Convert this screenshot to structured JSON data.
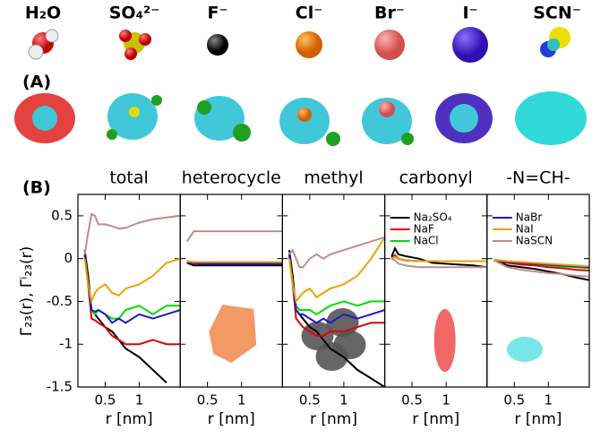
{
  "ions": [
    "H₂O",
    "SO₄²⁻",
    "F⁻",
    "Cl⁻",
    "Br⁻",
    "I⁻",
    "SCN⁻"
  ],
  "panel_labels": [
    "(A)",
    "(B)"
  ],
  "chart_data": [
    {
      "type": "line",
      "title": "total",
      "x_label": "r [nm]",
      "y_label": "Γ₂₃(r), Γⁱ₂₃(r)",
      "x": [
        0.2,
        0.25,
        0.3,
        0.35,
        0.4,
        0.5,
        0.6,
        0.7,
        0.8,
        1.0,
        1.2,
        1.4,
        1.6
      ],
      "xlim": [
        0.1,
        1.6
      ],
      "xticks": [
        0.5,
        1
      ],
      "ylim": [
        -1.5,
        0.75
      ],
      "yticks": [
        0.5,
        0,
        -0.5,
        -1,
        -1.5
      ],
      "series": [
        {
          "name": "Na₂SO₄",
          "color": "#000000",
          "values": [
            0.1,
            -0.2,
            -0.6,
            -0.65,
            -0.7,
            -0.8,
            -0.85,
            -0.95,
            -1.05,
            -1.15,
            -1.3,
            -1.45,
            null
          ]
        },
        {
          "name": "NaF",
          "color": "#e00000",
          "values": [
            0.05,
            -0.3,
            -0.7,
            -0.72,
            -0.75,
            -0.8,
            -0.9,
            -0.95,
            -1.0,
            -1.0,
            -0.95,
            -1.0,
            -1.0
          ]
        },
        {
          "name": "NaCl",
          "color": "#00dd00",
          "values": [
            0.05,
            -0.3,
            -0.6,
            -0.65,
            -0.6,
            -0.65,
            -0.7,
            -0.7,
            -0.6,
            -0.55,
            -0.65,
            -0.55,
            -0.55
          ]
        },
        {
          "name": "NaBr",
          "color": "#1a1acc",
          "values": [
            0.05,
            -0.3,
            -0.6,
            -0.62,
            -0.6,
            -0.65,
            -0.75,
            -0.7,
            -0.75,
            -0.65,
            -0.7,
            -0.65,
            -0.6
          ]
        },
        {
          "name": "NaI",
          "color": "#f0a000",
          "values": [
            0.0,
            -0.3,
            -0.5,
            -0.4,
            -0.35,
            -0.3,
            -0.4,
            -0.43,
            -0.35,
            -0.3,
            -0.2,
            -0.05,
            0.0
          ]
        },
        {
          "name": "NaSCN",
          "color": "#c08b8b",
          "values": [
            0.05,
            0.3,
            0.52,
            0.5,
            0.4,
            0.4,
            0.38,
            0.35,
            0.36,
            0.42,
            0.46,
            0.48,
            0.5
          ]
        }
      ]
    },
    {
      "type": "line",
      "title": "heterocycle",
      "x_label": "r [nm]",
      "x": [
        0.2,
        0.3,
        0.4,
        0.6,
        0.8,
        1.0,
        1.2,
        1.4,
        1.6
      ],
      "xlim": [
        0.1,
        1.6
      ],
      "xticks": [
        0.5,
        1
      ],
      "series": [
        {
          "color": "#000000",
          "values": [
            -0.05,
            -0.08,
            -0.08,
            -0.08,
            -0.08,
            -0.08,
            -0.08,
            -0.08,
            -0.08
          ]
        },
        {
          "color": "#e00000",
          "values": [
            -0.04,
            -0.06,
            -0.06,
            -0.06,
            -0.06,
            -0.06,
            -0.06,
            -0.06,
            -0.06
          ]
        },
        {
          "color": "#00dd00",
          "values": [
            -0.04,
            -0.05,
            -0.05,
            -0.05,
            -0.05,
            -0.05,
            -0.05,
            -0.05,
            -0.05
          ]
        },
        {
          "color": "#1a1acc",
          "values": [
            -0.04,
            -0.05,
            -0.06,
            -0.06,
            -0.06,
            -0.06,
            -0.06,
            -0.06,
            -0.06
          ]
        },
        {
          "color": "#f0a000",
          "values": [
            -0.03,
            -0.04,
            -0.04,
            -0.04,
            -0.04,
            -0.04,
            -0.04,
            -0.04,
            -0.04
          ]
        },
        {
          "color": "#c08b8b",
          "values": [
            0.2,
            0.32,
            0.32,
            0.32,
            0.32,
            0.32,
            0.32,
            0.32,
            0.32
          ]
        }
      ]
    },
    {
      "type": "line",
      "title": "methyl",
      "x_label": "r [nm]",
      "x": [
        0.2,
        0.25,
        0.3,
        0.35,
        0.4,
        0.5,
        0.6,
        0.7,
        0.8,
        1.0,
        1.2,
        1.4,
        1.6
      ],
      "xlim": [
        0.1,
        1.6
      ],
      "xticks": [
        0.5,
        1
      ],
      "series": [
        {
          "color": "#000000",
          "values": [
            0.1,
            -0.2,
            -0.6,
            -0.65,
            -0.7,
            -0.8,
            -0.85,
            -0.95,
            -1.05,
            -1.15,
            -1.3,
            -1.4,
            -1.5
          ]
        },
        {
          "color": "#e00000",
          "values": [
            0.05,
            -0.3,
            -0.7,
            -0.75,
            -0.8,
            -0.85,
            -0.9,
            -0.9,
            -0.85,
            -0.85,
            -0.8,
            -0.75,
            -0.75
          ]
        },
        {
          "color": "#00dd00",
          "values": [
            0.05,
            -0.3,
            -0.55,
            -0.6,
            -0.6,
            -0.6,
            -0.65,
            -0.6,
            -0.55,
            -0.5,
            -0.55,
            -0.5,
            -0.5
          ]
        },
        {
          "color": "#1a1acc",
          "values": [
            0.05,
            -0.3,
            -0.6,
            -0.65,
            -0.65,
            -0.7,
            -0.75,
            -0.7,
            -0.75,
            -0.65,
            -0.7,
            -0.65,
            -0.6
          ]
        },
        {
          "color": "#f0a000",
          "values": [
            0.0,
            -0.3,
            -0.5,
            -0.45,
            -0.4,
            -0.35,
            -0.45,
            -0.4,
            -0.35,
            -0.3,
            -0.2,
            0.0,
            0.25
          ]
        },
        {
          "color": "#c08b8b",
          "values": [
            0.05,
            0.1,
            0.0,
            -0.1,
            -0.1,
            0.0,
            0.05,
            0.0,
            0.05,
            0.1,
            0.15,
            0.2,
            0.25
          ]
        }
      ]
    },
    {
      "type": "line",
      "title": "carbonyl",
      "x_label": "r [nm]",
      "x": [
        0.2,
        0.25,
        0.3,
        0.4,
        0.6,
        0.8,
        1.0,
        1.2,
        1.4,
        1.6
      ],
      "xlim": [
        0.1,
        1.6
      ],
      "xticks": [
        0.5,
        1
      ],
      "series": [
        {
          "color": "#000000",
          "values": [
            0.02,
            0.12,
            0.05,
            0.03,
            0.0,
            -0.05,
            -0.06,
            -0.07,
            -0.08,
            -0.1
          ]
        },
        {
          "color": "#e00000",
          "values": [
            0.0,
            0.04,
            0.0,
            -0.02,
            -0.03,
            -0.03,
            -0.03,
            -0.03,
            -0.03,
            -0.03
          ]
        },
        {
          "color": "#00dd00",
          "values": [
            0.0,
            0.02,
            0.0,
            -0.02,
            -0.03,
            -0.03,
            -0.03,
            -0.03,
            -0.03,
            -0.03
          ]
        },
        {
          "color": "#1a1acc",
          "values": [
            0.0,
            0.02,
            0.0,
            -0.02,
            -0.03,
            -0.03,
            -0.03,
            -0.03,
            -0.03,
            -0.03
          ]
        },
        {
          "color": "#f0a000",
          "values": [
            0.0,
            0.02,
            0.0,
            -0.02,
            -0.03,
            -0.03,
            -0.03,
            -0.03,
            -0.03,
            -0.03
          ]
        },
        {
          "color": "#c08b8b",
          "values": [
            0.0,
            -0.02,
            -0.06,
            -0.08,
            -0.1,
            -0.1,
            -0.1,
            -0.1,
            -0.1,
            -0.1
          ]
        }
      ]
    },
    {
      "type": "line",
      "title": "-N=CH-",
      "x_label": "r [nm]",
      "x": [
        0.2,
        0.3,
        0.4,
        0.6,
        0.8,
        1.0,
        1.2,
        1.4,
        1.6
      ],
      "xlim": [
        0.1,
        1.6
      ],
      "xticks": [
        0.5,
        1
      ],
      "series": [
        {
          "color": "#000000",
          "values": [
            -0.02,
            -0.05,
            -0.08,
            -0.1,
            -0.12,
            -0.15,
            -0.18,
            -0.22,
            -0.25
          ]
        },
        {
          "color": "#e00000",
          "values": [
            -0.02,
            -0.04,
            -0.05,
            -0.07,
            -0.08,
            -0.1,
            -0.11,
            -0.13,
            -0.14
          ]
        },
        {
          "color": "#00dd00",
          "values": [
            -0.02,
            -0.03,
            -0.04,
            -0.05,
            -0.06,
            -0.08,
            -0.09,
            -0.1,
            -0.11
          ]
        },
        {
          "color": "#1a1acc",
          "values": [
            -0.02,
            -0.03,
            -0.04,
            -0.05,
            -0.06,
            -0.07,
            -0.08,
            -0.09,
            -0.1
          ]
        },
        {
          "color": "#f0a000",
          "values": [
            -0.01,
            -0.02,
            -0.03,
            -0.04,
            -0.05,
            -0.06,
            -0.07,
            -0.08,
            -0.09
          ]
        },
        {
          "color": "#c08b8b",
          "values": [
            -0.02,
            -0.06,
            -0.1,
            -0.13,
            -0.15,
            -0.17,
            -0.18,
            -0.2,
            -0.21
          ]
        }
      ]
    }
  ]
}
